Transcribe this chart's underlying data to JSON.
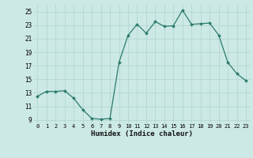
{
  "x": [
    0,
    1,
    2,
    3,
    4,
    5,
    6,
    7,
    8,
    9,
    10,
    11,
    12,
    13,
    14,
    15,
    16,
    17,
    18,
    19,
    20,
    21,
    22,
    23
  ],
  "y": [
    12.5,
    13.2,
    13.2,
    13.3,
    12.2,
    10.5,
    9.2,
    9.1,
    9.2,
    17.5,
    21.5,
    23.1,
    21.8,
    23.5,
    22.8,
    22.9,
    25.2,
    23.1,
    23.2,
    23.3,
    21.5,
    17.5,
    15.8,
    14.8
  ],
  "xlabel": "Humidex (Indice chaleur)",
  "bg_color": "#cce9e5",
  "line_color": "#2d7a6e",
  "grid_color": "#aed4cf",
  "ylim": [
    8.5,
    26
  ],
  "xlim": [
    -0.5,
    23.5
  ],
  "yticks": [
    9,
    11,
    13,
    15,
    17,
    19,
    21,
    23,
    25
  ],
  "xticks": [
    0,
    1,
    2,
    3,
    4,
    5,
    6,
    7,
    8,
    9,
    10,
    11,
    12,
    13,
    14,
    15,
    16,
    17,
    18,
    19,
    20,
    21,
    22,
    23
  ]
}
